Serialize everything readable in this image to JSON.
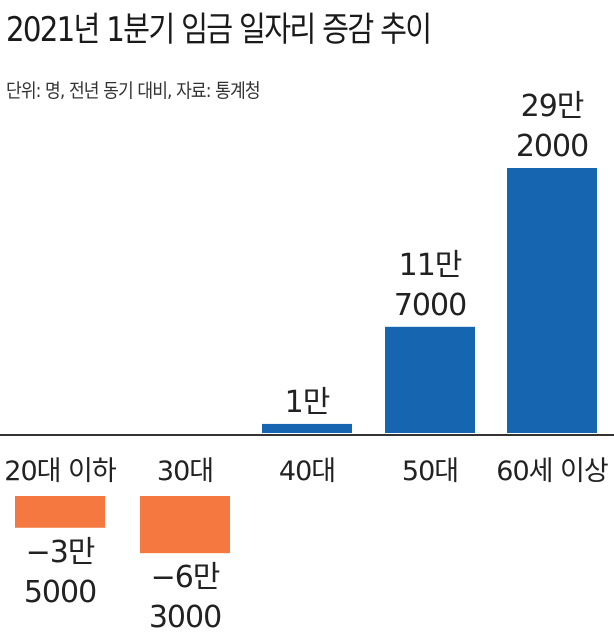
{
  "title": "2021년 1분기 임금 일자리 증감 추이",
  "subtitle": "단위: 명, 전년 동기 대비, 자료: 통계청",
  "colors": {
    "positive": "#1565b0",
    "negative": "#f4783f",
    "axis": "#333333",
    "text": "#222222"
  },
  "chart_data": {
    "type": "bar",
    "title": "2021년 1분기 임금 일자리 증감 추이",
    "categories": [
      "20대 이하",
      "30대",
      "40대",
      "50대",
      "60세 이상"
    ],
    "values": [
      -35000,
      -63000,
      10000,
      117000,
      292000
    ],
    "data_labels": [
      [
        "−3만",
        "5000"
      ],
      [
        "−6만",
        "3000"
      ],
      [
        "1만"
      ],
      [
        "11만",
        "7000"
      ],
      [
        "29만",
        "2000"
      ]
    ],
    "ylim": [
      -63000,
      292000
    ],
    "grid": false,
    "legend": "none"
  }
}
